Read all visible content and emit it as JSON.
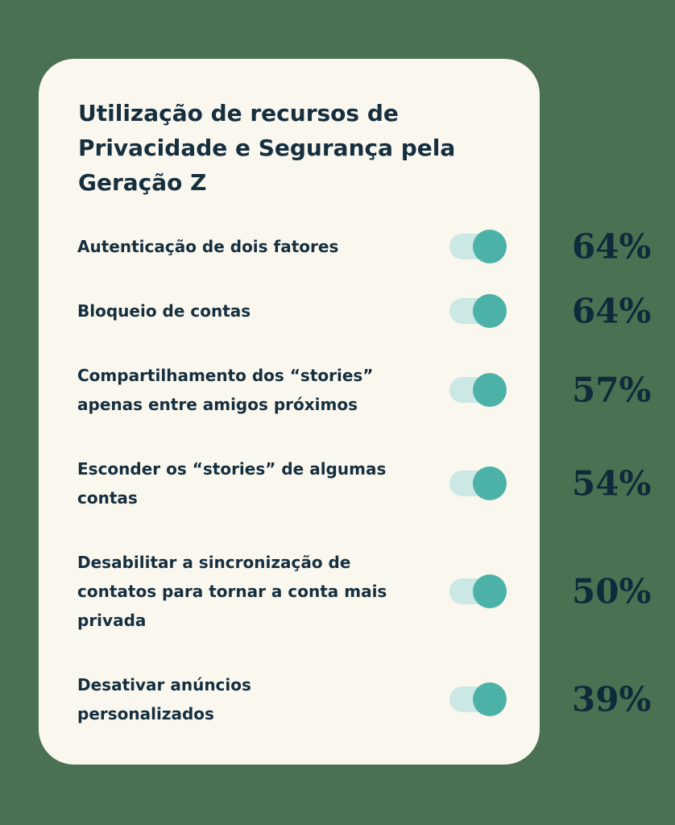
{
  "colors": {
    "page_background": "#4a7152",
    "card_background": "#faf7ef",
    "title_text": "#152f3f",
    "label_text": "#152f3f",
    "value_text": "#0f2a3a",
    "toggle_track": "#cbe8e4",
    "toggle_knob": "#4cb2a8"
  },
  "card": {
    "title": "Utilização de recursos de Privacidade e Segurança pela Geração Z",
    "title_lines": [
      "Utilização de recursos de",
      "Privacidade e Segurança pela",
      "Geração Z"
    ]
  },
  "rows": [
    {
      "label": "Autenticação de dois fatores",
      "label_lines": [
        "Autenticação de dois fatores"
      ],
      "value": "64%",
      "toggle_state": "on"
    },
    {
      "label": "Bloqueio de contas",
      "label_lines": [
        "Bloqueio de contas"
      ],
      "value": "64%",
      "toggle_state": "on"
    },
    {
      "label": "Compartilhamento dos “stories” apenas entre amigos próximos",
      "label_lines": [
        "Compartilhamento dos “stories”",
        "apenas entre amigos próximos"
      ],
      "value": "57%",
      "toggle_state": "on"
    },
    {
      "label": "Esconder os “stories” de algumas contas",
      "label_lines": [
        "Esconder os “stories” de algumas",
        "contas"
      ],
      "value": "54%",
      "toggle_state": "on"
    },
    {
      "label": "Desabilitar a sincronização de contatos para tornar a conta mais privada",
      "label_lines": [
        "Desabilitar a sincronização de",
        "contatos para tornar a conta mais",
        "privada"
      ],
      "value": "50%",
      "toggle_state": "on"
    },
    {
      "label": "Desativar anúncios personalizados",
      "label_lines": [
        "Desativar anúncios",
        "personalizados"
      ],
      "value": "39%",
      "toggle_state": "on"
    }
  ],
  "chart_data": {
    "type": "table",
    "title": "Utilização de recursos de Privacidade e Segurança pela Geração Z",
    "categories": [
      "Autenticação de dois fatores",
      "Bloqueio de contas",
      "Compartilhamento dos “stories” apenas entre amigos próximos",
      "Esconder os “stories” de algumas contas",
      "Desabilitar a sincronização de contatos para tornar a conta mais privada",
      "Desativar anúncios personalizados"
    ],
    "values": [
      64,
      64,
      57,
      54,
      50,
      39
    ],
    "unit": "%",
    "legend_position": "none",
    "grid": false
  }
}
